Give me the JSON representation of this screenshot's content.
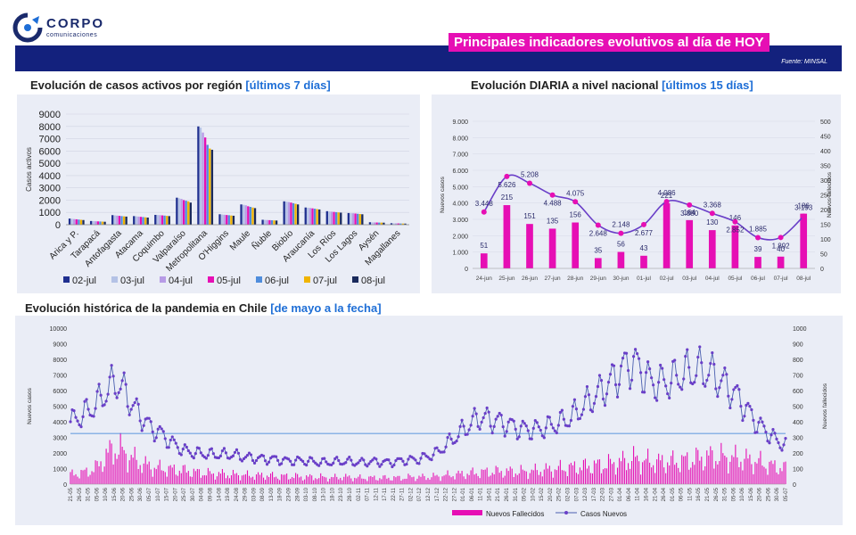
{
  "header": {
    "logo_name": "CORPO",
    "logo_sub": "comunicaciones",
    "banner_title": "Principales indicadores evolutivos al día de HOY",
    "source": "Fuente: MINSAL"
  },
  "colors": {
    "navy": "#13217d",
    "magenta": "#e60fb4",
    "purple": "#6a3fc8",
    "accent_text": "#1e6ed6",
    "panel": "#eaedf6"
  },
  "chart_data": [
    {
      "type": "bar",
      "id": "regional",
      "title": "Evolución de casos activos por región",
      "title_highlight": "[últimos 7 días]",
      "ylabel": "Casos activos",
      "ylim": [
        0,
        9000
      ],
      "yticks": [
        "0",
        "1000",
        "2000",
        "3000",
        "4000",
        "5000",
        "6000",
        "7000",
        "8000",
        "9000"
      ],
      "categories": [
        "Arica y P.",
        "Tarapacá",
        "Antofagasta",
        "Atacama",
        "Coquimbo",
        "Valparaíso",
        "Metropolitana",
        "O'Higgins",
        "Maule",
        "Ñuble",
        "Biobío",
        "Araucanía",
        "Los Ríos",
        "Los Lagos",
        "Aysén",
        "Magallanes"
      ],
      "series": [
        {
          "name": "02-jul",
          "color": "#1f2f8f",
          "values": [
            500,
            300,
            780,
            700,
            800,
            2200,
            8000,
            850,
            1650,
            400,
            1900,
            1400,
            1100,
            950,
            200,
            120
          ]
        },
        {
          "name": "03-jul",
          "color": "#b4c2e6",
          "values": [
            480,
            290,
            760,
            680,
            790,
            2150,
            7900,
            830,
            1620,
            390,
            1880,
            1380,
            1080,
            940,
            190,
            115
          ]
        },
        {
          "name": "04-jul",
          "color": "#b79be6",
          "values": [
            460,
            280,
            740,
            660,
            780,
            2100,
            7500,
            810,
            1580,
            380,
            1850,
            1360,
            1060,
            930,
            185,
            110
          ]
        },
        {
          "name": "05-jul",
          "color": "#e60fb4",
          "values": [
            440,
            270,
            720,
            640,
            760,
            2000,
            7100,
            790,
            1500,
            370,
            1800,
            1330,
            1040,
            910,
            180,
            105
          ]
        },
        {
          "name": "06-jul",
          "color": "#4f8ddc",
          "values": [
            420,
            260,
            700,
            620,
            740,
            1950,
            6500,
            770,
            1450,
            360,
            1750,
            1300,
            1020,
            890,
            175,
            100
          ]
        },
        {
          "name": "07-jul",
          "color": "#f0b400",
          "values": [
            400,
            250,
            680,
            600,
            720,
            1900,
            6200,
            750,
            1400,
            350,
            1700,
            1270,
            1000,
            870,
            170,
            95
          ]
        },
        {
          "name": "08-jul",
          "color": "#1a2a5c",
          "values": [
            380,
            240,
            660,
            580,
            700,
            1800,
            6100,
            730,
            1350,
            340,
            1650,
            1240,
            980,
            850,
            165,
            90
          ]
        }
      ]
    },
    {
      "type": "combo",
      "id": "diaria",
      "title": "Evolución DIARIA  a nivel nacional",
      "title_highlight": "[últimos 15 días]",
      "ylabel_left": "Nuevos casos",
      "ylabel_right": "Nuevos fallecidos",
      "ylim_left": [
        0,
        9000
      ],
      "ylim_right": [
        0,
        500
      ],
      "yticks_left": [
        "0",
        "1.000",
        "2.000",
        "3.000",
        "4.000",
        "5.000",
        "6.000",
        "7.000",
        "8.000",
        "9.000"
      ],
      "yticks_right": [
        "0",
        "50",
        "100",
        "150",
        "200",
        "250",
        "300",
        "350",
        "400",
        "450",
        "500"
      ],
      "x": [
        "24-jun",
        "25-jun",
        "26-jun",
        "27-jun",
        "28-jun",
        "29-jun",
        "30-jun",
        "01-jul",
        "02-jul",
        "03-jul",
        "04-jul",
        "05-jul",
        "06-jul",
        "07-jul",
        "08-jul"
      ],
      "casos": [
        3448,
        5626,
        5208,
        4488,
        4075,
        2648,
        2148,
        2677,
        4086,
        3880,
        3368,
        2852,
        1885,
        1892,
        3193
      ],
      "casos_labels": [
        "3.448",
        "5.626",
        "5.208",
        "4.488",
        "4.075",
        "2.648",
        "2.148",
        "2.677",
        "4.086",
        "3.880",
        "3.368",
        "2.852",
        "1.885",
        "1.892",
        "3.193"
      ],
      "fallecidos": [
        51,
        215,
        151,
        135,
        156,
        35,
        56,
        43,
        221,
        164,
        130,
        146,
        39,
        40,
        186
      ],
      "fallecidos_labels": [
        "51",
        "215",
        "151",
        "135",
        "156",
        "35",
        "56",
        "43",
        "221",
        "164",
        "130",
        "146",
        "39",
        "40",
        "186"
      ]
    },
    {
      "type": "combo",
      "id": "historica",
      "title": "Evolución histórica de la pandemia en Chile",
      "title_highlight": "[de mayo a la fecha]",
      "ylabel_left": "Nuevos casos",
      "ylabel_right": "Nuevos fallecidos",
      "ylim_left": [
        0,
        10000
      ],
      "ylim_right": [
        0,
        1000
      ],
      "yticks_left": [
        "0",
        "1000",
        "2000",
        "3000",
        "4000",
        "5000",
        "6000",
        "7000",
        "8000",
        "9000",
        "10000"
      ],
      "yticks_right": [
        "0",
        "100",
        "200",
        "300",
        "400",
        "500",
        "600",
        "700",
        "800",
        "900",
        "1000"
      ],
      "reference_line": 3250,
      "x_labels": [
        "21-05",
        "26-05",
        "31-05",
        "05-06",
        "10-06",
        "15-06",
        "20-06",
        "25-06",
        "30-06",
        "05-07",
        "10-07",
        "15-07",
        "20-07",
        "25-07",
        "30-07",
        "04-08",
        "09-08",
        "14-08",
        "19-08",
        "24-08",
        "29-08",
        "03-09",
        "08-09",
        "13-09",
        "18-09",
        "23-09",
        "28-09",
        "03-10",
        "08-10",
        "13-10",
        "18-10",
        "23-10",
        "28-10",
        "02-11",
        "07-11",
        "12-11",
        "17-11",
        "22-11",
        "27-11",
        "02-12",
        "07-12",
        "12-12",
        "17-12",
        "22-12",
        "27-12",
        "01-01",
        "06-01",
        "11-01",
        "16-01",
        "21-01",
        "26-01",
        "31-01",
        "05-02",
        "10-02",
        "15-02",
        "20-02",
        "25-02",
        "02-03",
        "07-03",
        "12-03",
        "17-03",
        "22-03",
        "27-03",
        "01-04",
        "06-04",
        "11-04",
        "16-04",
        "21-04",
        "26-04",
        "01-05",
        "06-05",
        "11-05",
        "16-05",
        "21-05",
        "26-05",
        "31-05",
        "05-06",
        "10-06",
        "15-06",
        "20-06",
        "25-06",
        "30-06",
        "05-07"
      ],
      "casos_anchors": [
        4000,
        4300,
        4700,
        5200,
        5900,
        6600,
        6000,
        5000,
        4300,
        3600,
        3300,
        2800,
        2400,
        2100,
        2000,
        1950,
        1900,
        1900,
        1900,
        1800,
        1700,
        1650,
        1600,
        1600,
        1500,
        1500,
        1500,
        1450,
        1400,
        1400,
        1450,
        1450,
        1400,
        1400,
        1450,
        1400,
        1400,
        1500,
        1550,
        1600,
        1800,
        2000,
        2500,
        3000,
        3500,
        4000,
        4300,
        4100,
        4000,
        3800,
        3600,
        3500,
        3500,
        3600,
        3800,
        4000,
        4300,
        4800,
        5300,
        5800,
        6300,
        6900,
        7500,
        7800,
        7200,
        6500,
        6500,
        6600,
        6900,
        7200,
        7300,
        7300,
        7000,
        6500,
        6000,
        5300,
        4500,
        3800,
        3300,
        2800,
        2500
      ],
      "fallecidos_anchors": [
        60,
        70,
        80,
        110,
        180,
        230,
        200,
        160,
        130,
        110,
        100,
        95,
        90,
        85,
        75,
        70,
        65,
        65,
        60,
        60,
        55,
        55,
        55,
        50,
        50,
        50,
        45,
        45,
        45,
        40,
        45,
        45,
        40,
        40,
        40,
        40,
        40,
        40,
        45,
        45,
        45,
        50,
        55,
        60,
        65,
        70,
        75,
        80,
        80,
        80,
        80,
        80,
        85,
        90,
        95,
        100,
        105,
        110,
        115,
        120,
        125,
        135,
        145,
        160,
        150,
        140,
        140,
        140,
        145,
        150,
        160,
        170,
        175,
        170,
        165,
        160,
        150,
        140,
        120,
        110,
        100
      ],
      "legend": [
        "Nuevos Fallecidos",
        "Casos Nuevos"
      ]
    }
  ]
}
